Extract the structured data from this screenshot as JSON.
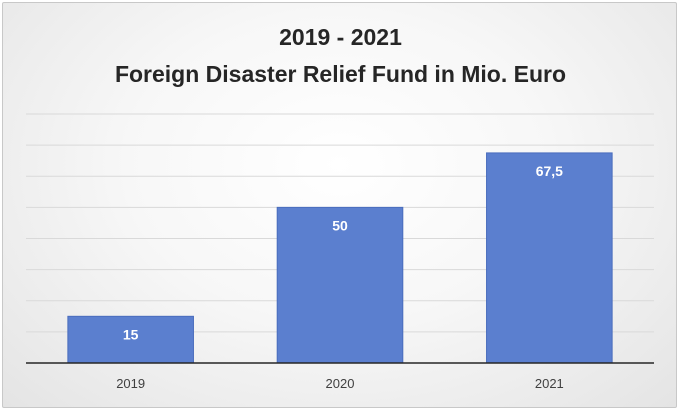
{
  "chart_data": {
    "type": "bar",
    "title": "2019 - 2021",
    "subtitle": "Foreign Disaster Relief Fund in Mio. Euro",
    "categories": [
      "2019",
      "2020",
      "2021"
    ],
    "values": [
      15,
      50,
      67.5
    ],
    "data_labels": [
      "15",
      "50",
      "67,5"
    ],
    "xlabel": "",
    "ylabel": "",
    "ylim": [
      0,
      80
    ],
    "grid": true,
    "legend": "none",
    "colors": {
      "bar": "#5b7fcf",
      "bar_stroke": "#4a6dbd",
      "grid": "#d9d9d9",
      "axis": "#262626"
    }
  }
}
